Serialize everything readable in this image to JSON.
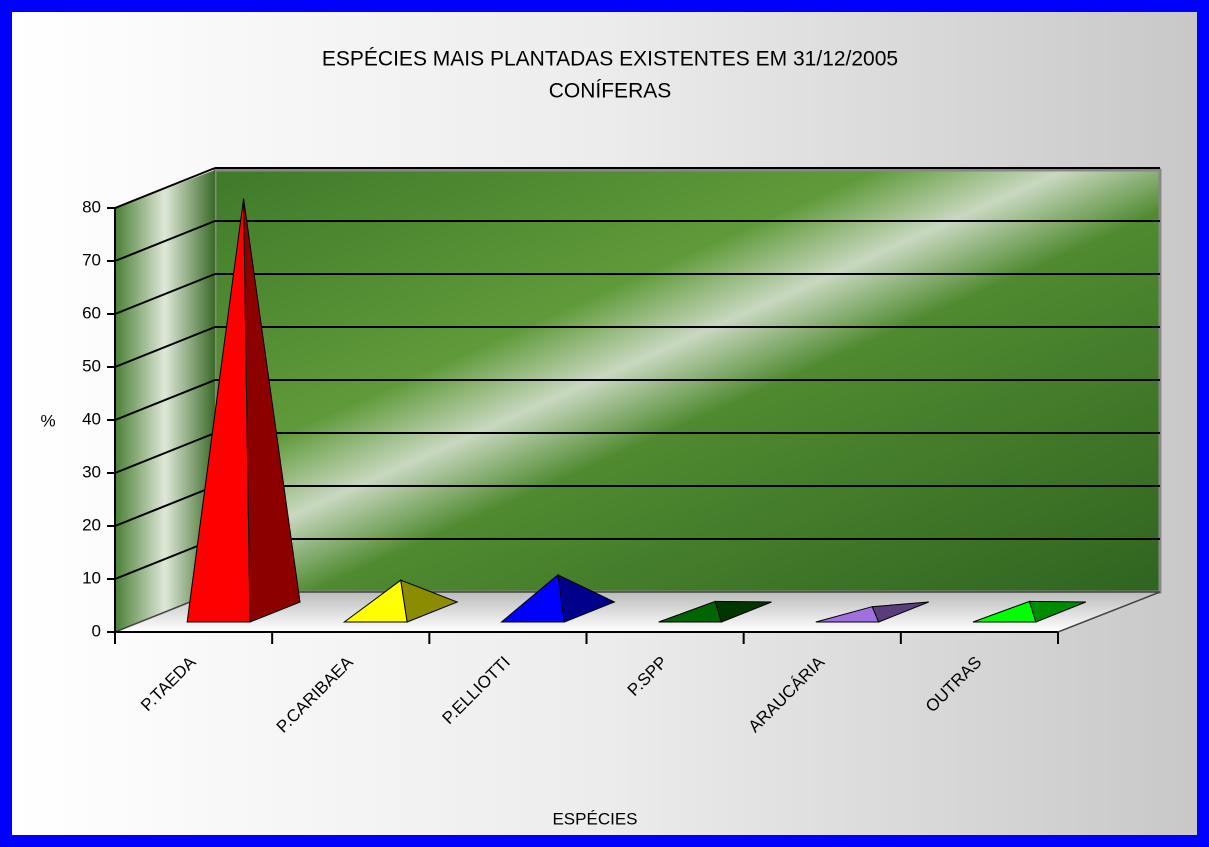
{
  "chart_data": {
    "type": "pyramid3d",
    "title": "ESPÉCIES MAIS PLANTADAS EXISTENTES EM 31/12/2005",
    "subtitle": "CONÍFERAS",
    "y_label": "%",
    "x_label": "ESPÉCIES",
    "categories": [
      "P.TAEDA",
      "P.CARIBAEA",
      "P.ELLIOTTI",
      "P.SPP",
      "ARAUCÁRIA",
      "OUTRAS"
    ],
    "values": [
      78,
      6,
      7,
      2,
      1,
      2
    ],
    "colors": [
      "#ff0000",
      "#ffff00",
      "#0000ff",
      "#006400",
      "#a070e0",
      "#00ff00"
    ],
    "ylim": [
      0,
      80
    ],
    "yticks": [
      0,
      10,
      20,
      30,
      40,
      50,
      60,
      70,
      80
    ],
    "grid": true
  }
}
